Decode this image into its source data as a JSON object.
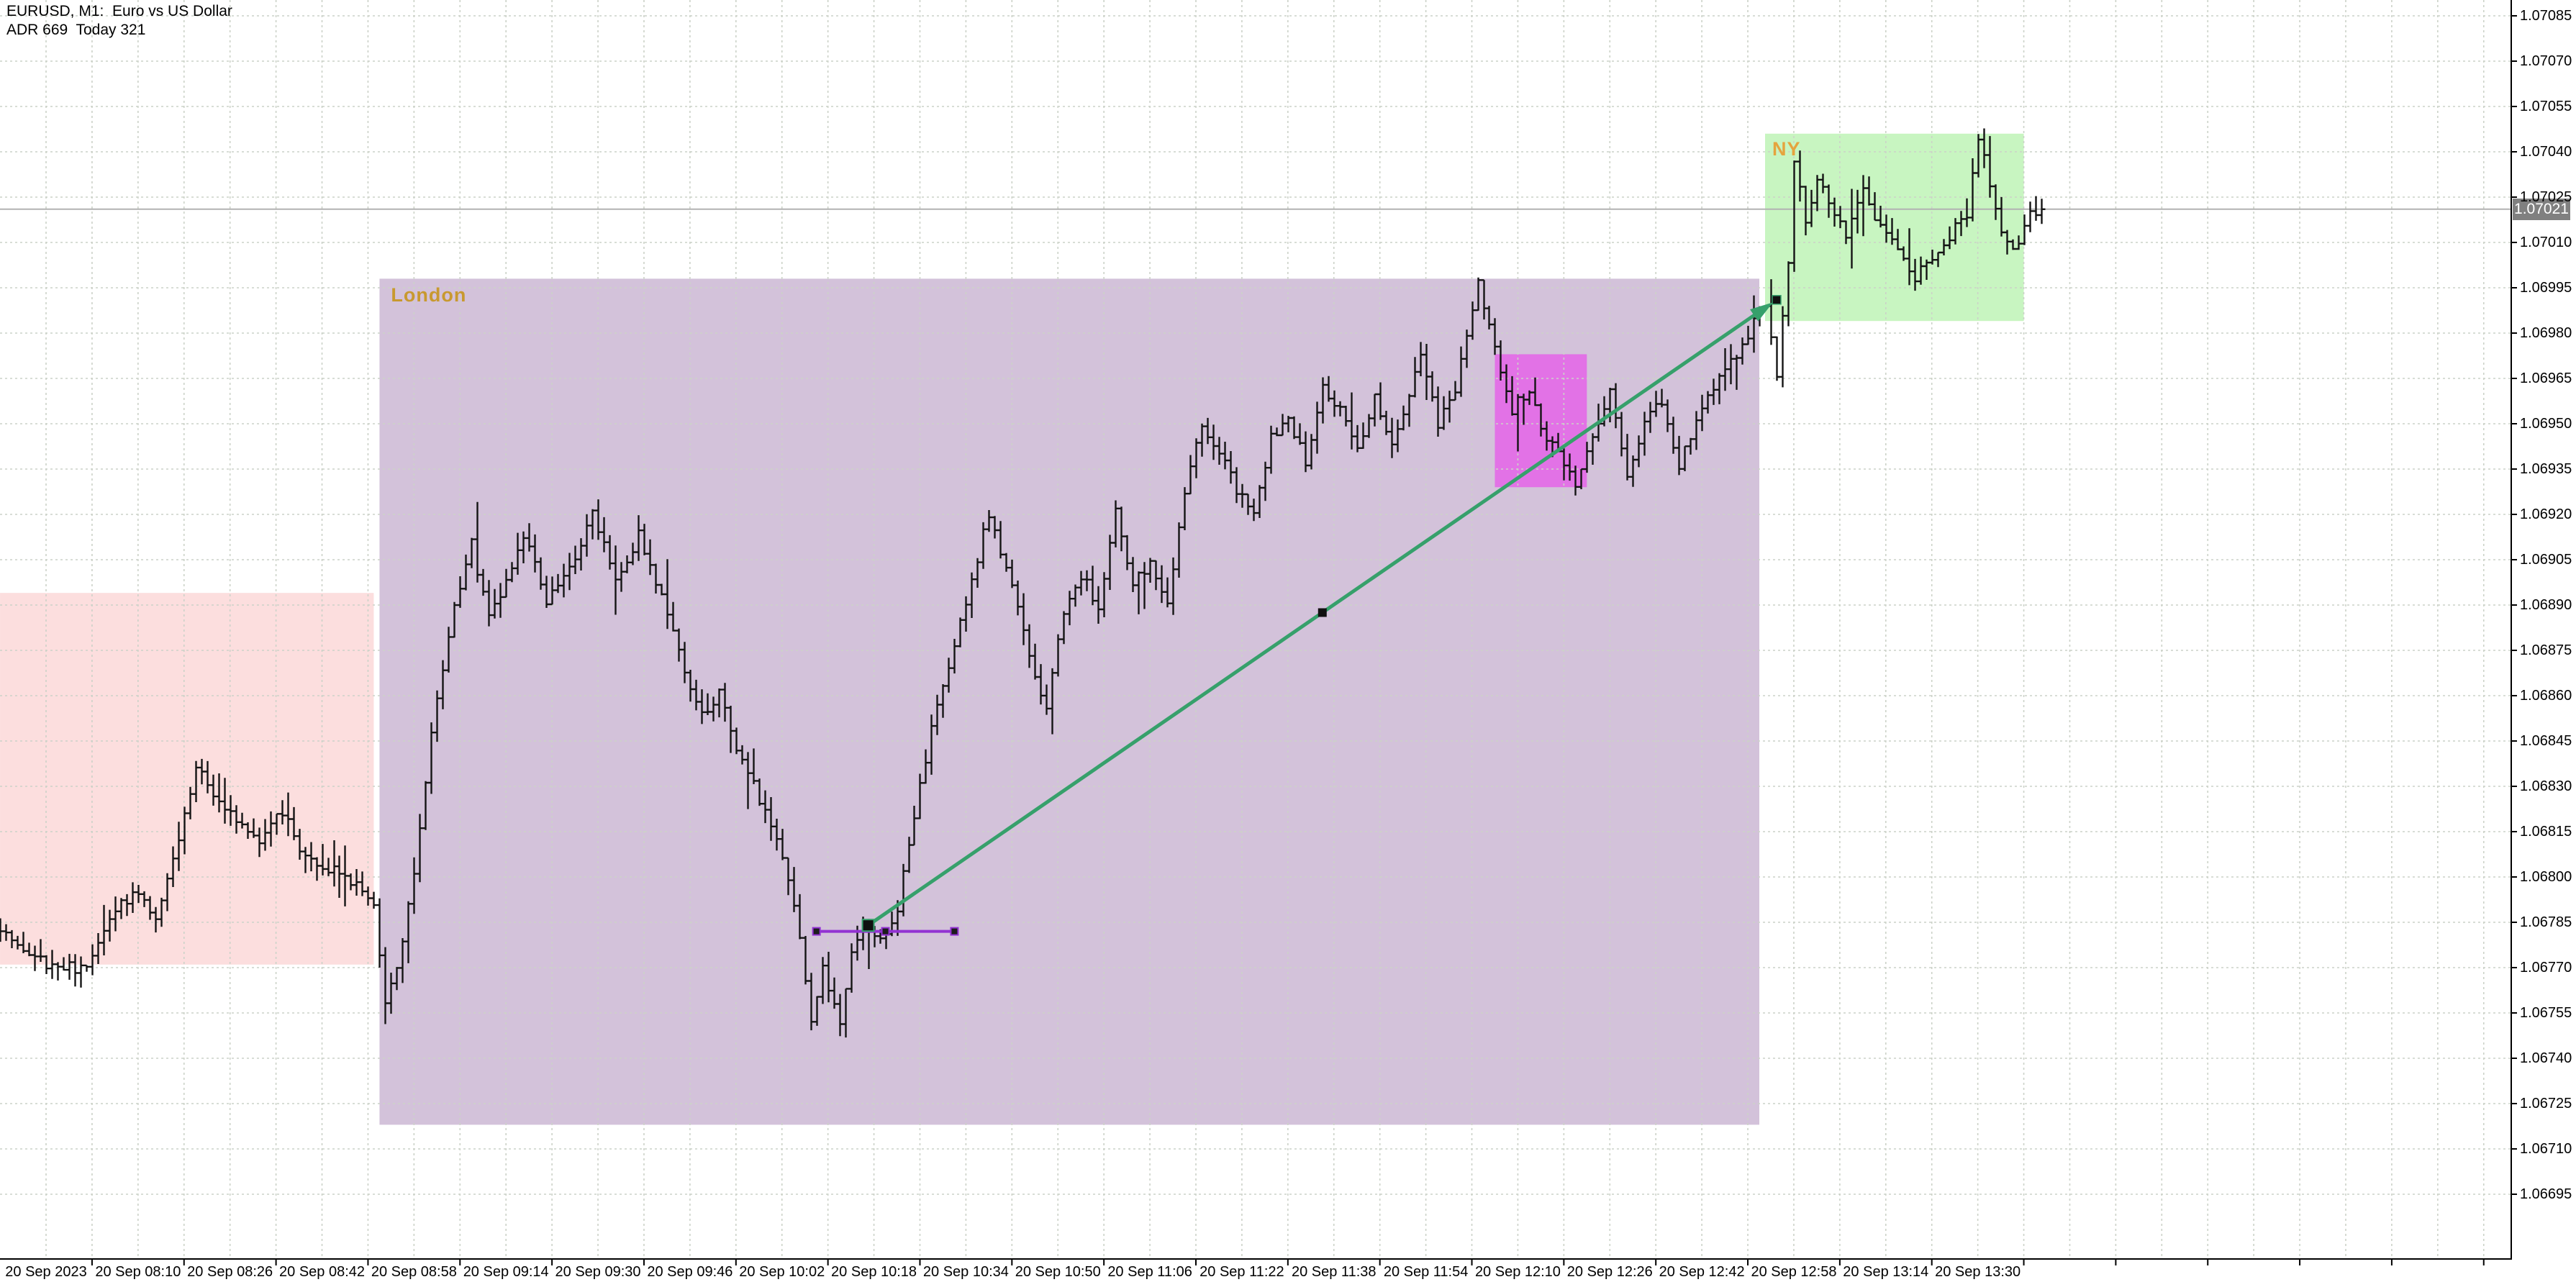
{
  "header": {
    "symbol_line": "EURUSD, M1:  Euro vs US Dollar",
    "adr_line": "ADR 669  Today 321"
  },
  "price_axis": {
    "current_price": "1.07021",
    "labels": [
      "1.07085",
      "1.07070",
      "1.07055",
      "1.07040",
      "1.07025",
      "1.07010",
      "1.06995",
      "1.06980",
      "1.06965",
      "1.06950",
      "1.06935",
      "1.06920",
      "1.06905",
      "1.06890",
      "1.06875",
      "1.06860",
      "1.06845",
      "1.06830",
      "1.06815",
      "1.06800",
      "1.06785",
      "1.06770",
      "1.06755",
      "1.06740",
      "1.06725",
      "1.06710",
      "1.06695"
    ]
  },
  "time_axis": {
    "labels": [
      "20 Sep 2023",
      "20 Sep 08:10",
      "20 Sep 08:26",
      "20 Sep 08:42",
      "20 Sep 08:58",
      "20 Sep 09:14",
      "20 Sep 09:30",
      "20 Sep 09:46",
      "20 Sep 10:02",
      "20 Sep 10:18",
      "20 Sep 10:34",
      "20 Sep 10:50",
      "20 Sep 11:06",
      "20 Sep 11:22",
      "20 Sep 11:38",
      "20 Sep 11:54",
      "20 Sep 12:10",
      "20 Sep 12:26",
      "20 Sep 12:42",
      "20 Sep 12:58",
      "20 Sep 13:14",
      "20 Sep 13:30"
    ]
  },
  "chart_data": {
    "type": "ohlc-bar",
    "symbol": "EURUSD",
    "timeframe": "M1",
    "date": "20 Sep 2023",
    "y_axis": {
      "min": 1.06695,
      "max": 1.07085,
      "tick_step": 0.00015
    },
    "x_axis": {
      "first_gridline": "07:54",
      "gridline_step_min": 8,
      "label_step_min": 16,
      "visible_start": "07:46",
      "visible_end": "13:41"
    },
    "bid": 1.07021,
    "day_low": 1.06748,
    "day_high": 1.07052,
    "waypoints": [
      [
        "07:46",
        1.06786
      ],
      [
        "07:50",
        1.06778
      ],
      [
        "07:54",
        1.06772
      ],
      [
        "08:02",
        1.06769
      ],
      [
        "08:06",
        1.06788
      ],
      [
        "08:10",
        1.06794
      ],
      [
        "08:14",
        1.06788
      ],
      [
        "08:18",
        1.06812
      ],
      [
        "08:21",
        1.06836
      ],
      [
        "08:24",
        1.06828
      ],
      [
        "08:28",
        1.06818
      ],
      [
        "08:32",
        1.06812
      ],
      [
        "08:36",
        1.06822
      ],
      [
        "08:40",
        1.06806
      ],
      [
        "08:45",
        1.06802
      ],
      [
        "08:49",
        1.06797
      ],
      [
        "08:52",
        1.0679
      ],
      [
        "08:54",
        1.06758
      ],
      [
        "08:56",
        1.06768
      ],
      [
        "08:59",
        1.068
      ],
      [
        "09:02",
        1.06848
      ],
      [
        "09:06",
        1.06888
      ],
      [
        "09:09",
        1.0691
      ],
      [
        "09:12",
        1.06886
      ],
      [
        "09:15",
        1.06898
      ],
      [
        "09:18",
        1.06914
      ],
      [
        "09:22",
        1.06892
      ],
      [
        "09:26",
        1.06901
      ],
      [
        "09:30",
        1.0692
      ],
      [
        "09:34",
        1.06898
      ],
      [
        "09:38",
        1.06913
      ],
      [
        "09:42",
        1.06892
      ],
      [
        "09:46",
        1.06868
      ],
      [
        "09:49",
        1.06853
      ],
      [
        "09:52",
        1.0686
      ],
      [
        "09:56",
        1.06838
      ],
      [
        "10:00",
        1.06822
      ],
      [
        "10:03",
        1.06808
      ],
      [
        "10:06",
        1.0678
      ],
      [
        "10:08",
        1.06754
      ],
      [
        "10:10",
        1.0677
      ],
      [
        "10:13",
        1.06751
      ],
      [
        "10:15",
        1.06776
      ],
      [
        "10:17",
        1.06783
      ],
      [
        "10:20",
        1.06779
      ],
      [
        "10:23",
        1.0679
      ],
      [
        "10:26",
        1.0682
      ],
      [
        "10:29",
        1.06848
      ],
      [
        "10:32",
        1.0687
      ],
      [
        "10:35",
        1.0689
      ],
      [
        "10:39",
        1.06921
      ],
      [
        "10:43",
        1.06895
      ],
      [
        "10:47",
        1.06868
      ],
      [
        "10:49",
        1.06855
      ],
      [
        "10:52",
        1.06888
      ],
      [
        "10:55",
        1.069
      ],
      [
        "10:58",
        1.0689
      ],
      [
        "11:01",
        1.06921
      ],
      [
        "11:04",
        1.06896
      ],
      [
        "11:07",
        1.06905
      ],
      [
        "11:10",
        1.0689
      ],
      [
        "11:13",
        1.06928
      ],
      [
        "11:16",
        1.0695
      ],
      [
        "11:19",
        1.0694
      ],
      [
        "11:22",
        1.06928
      ],
      [
        "11:25",
        1.06922
      ],
      [
        "11:28",
        1.06945
      ],
      [
        "11:31",
        1.06952
      ],
      [
        "11:34",
        1.06938
      ],
      [
        "11:37",
        1.06962
      ],
      [
        "11:40",
        1.06955
      ],
      [
        "11:43",
        1.06941
      ],
      [
        "11:46",
        1.06958
      ],
      [
        "11:49",
        1.06944
      ],
      [
        "11:52",
        1.0696
      ],
      [
        "11:54",
        1.06973
      ],
      [
        "11:57",
        1.0695
      ],
      [
        "12:00",
        1.06962
      ],
      [
        "12:04",
        1.06996
      ],
      [
        "12:07",
        1.06974
      ],
      [
        "12:10",
        1.06955
      ],
      [
        "12:13",
        1.06962
      ],
      [
        "12:16",
        1.06944
      ],
      [
        "12:19",
        1.06938
      ],
      [
        "12:21",
        1.0693
      ],
      [
        "12:24",
        1.06946
      ],
      [
        "12:27",
        1.06961
      ],
      [
        "12:30",
        1.06932
      ],
      [
        "12:33",
        1.0695
      ],
      [
        "12:36",
        1.06958
      ],
      [
        "12:39",
        1.06936
      ],
      [
        "12:42",
        1.0695
      ],
      [
        "12:45",
        1.06962
      ],
      [
        "12:48",
        1.0697
      ],
      [
        "12:51",
        1.0698
      ],
      [
        "12:54",
        1.0699
      ],
      [
        "12:56",
        1.06966
      ],
      [
        "12:58",
        1.07005
      ],
      [
        "12:59",
        1.07038
      ],
      [
        "13:01",
        1.07018
      ],
      [
        "13:03",
        1.07032
      ],
      [
        "13:05",
        1.07024
      ],
      [
        "13:08",
        1.07012
      ],
      [
        "13:11",
        1.07026
      ],
      [
        "13:14",
        1.07016
      ],
      [
        "13:17",
        1.07008
      ],
      [
        "13:20",
        1.06999
      ],
      [
        "13:23",
        1.07004
      ],
      [
        "13:26",
        1.07012
      ],
      [
        "13:29",
        1.0702
      ],
      [
        "13:31",
        1.07046
      ],
      [
        "13:33",
        1.07028
      ],
      [
        "13:35",
        1.07012
      ],
      [
        "13:37",
        1.07006
      ],
      [
        "13:39",
        1.07016
      ],
      [
        "13:41",
        1.07021
      ]
    ],
    "sessions": {
      "asia": {
        "label": "",
        "start": "07:46",
        "end": "08:51",
        "high": 1.06894,
        "low": 1.06771,
        "color": "#fcdede"
      },
      "london": {
        "label": "London",
        "start": "08:52",
        "end": "12:52",
        "high": 1.06998,
        "low": 1.06718,
        "color": "#d3c2da"
      },
      "ny": {
        "label": "NY",
        "start": "12:53",
        "end": "13:38",
        "high": 1.07046,
        "low": 1.06984,
        "color": "#c8f5c1"
      }
    },
    "highlight_box": {
      "start": "12:06",
      "end": "12:22",
      "high": 1.06973,
      "low": 1.06929,
      "color": "#e272e6"
    },
    "trendlines": {
      "green": {
        "from": [
          "10:17",
          1.06784
        ],
        "to": [
          "12:55",
          1.06991
        ],
        "color": "#36a06b",
        "arrow": true,
        "selected": true
      },
      "violet": {
        "from": [
          "10:08",
          1.06782
        ],
        "to": [
          "10:32",
          1.06782
        ],
        "color": "#9232d2",
        "selected": true
      }
    }
  },
  "colors": {
    "background": "#ffffff",
    "grid": "#ccd2c8",
    "bar": "#141414",
    "bid_line": "#b2b2b2",
    "axis": "#000000",
    "tag_bg": "#808080",
    "tag_text": "#ffffff",
    "label_london": "#c8992f",
    "label_ny": "#e5a43e"
  }
}
